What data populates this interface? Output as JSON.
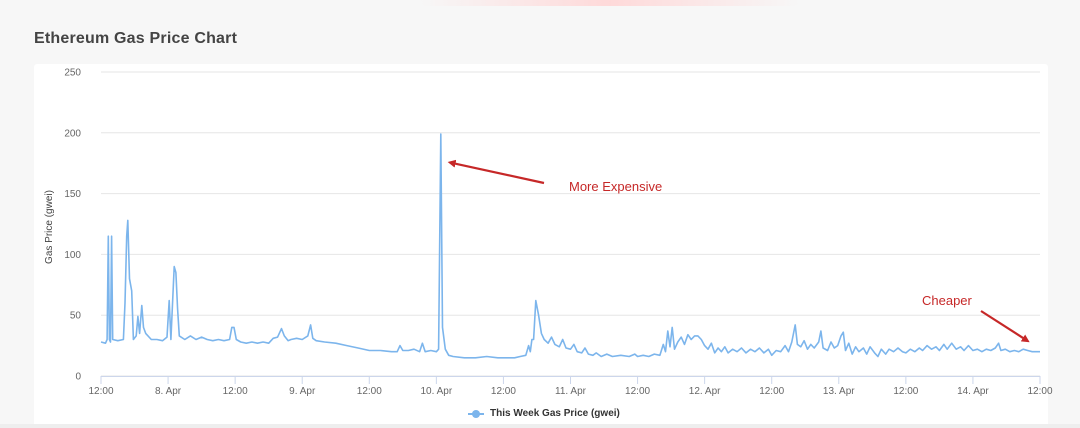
{
  "page": {
    "title": "Ethereum Gas Price Chart"
  },
  "chart_data": {
    "type": "line",
    "title": "Ethereum Gas Price Chart",
    "xlabel": "",
    "ylabel": "Gas Price (gwei)",
    "ylim": [
      0,
      250
    ],
    "yticks": [
      0,
      50,
      100,
      150,
      200,
      250
    ],
    "xlim": [
      0,
      168
    ],
    "xticks": [
      {
        "x": 0,
        "label": "12:00"
      },
      {
        "x": 12,
        "label": "8. Apr"
      },
      {
        "x": 24,
        "label": "12:00"
      },
      {
        "x": 36,
        "label": "9. Apr"
      },
      {
        "x": 48,
        "label": "12:00"
      },
      {
        "x": 60,
        "label": "10. Apr"
      },
      {
        "x": 72,
        "label": "12:00"
      },
      {
        "x": 84,
        "label": "11. Apr"
      },
      {
        "x": 96,
        "label": "12:00"
      },
      {
        "x": 108,
        "label": "12. Apr"
      },
      {
        "x": 120,
        "label": "12:00"
      },
      {
        "x": 132,
        "label": "13. Apr"
      },
      {
        "x": 144,
        "label": "12:00"
      },
      {
        "x": 156,
        "label": "14. Apr"
      },
      {
        "x": 168,
        "label": "12:00"
      }
    ],
    "grid": true,
    "legend_position": "bottom-center",
    "colors": {
      "series": "#7cb5ec",
      "grid": "#e6e6e6",
      "annotation": "#c62828"
    },
    "series": [
      {
        "name": "This Week Gas Price (gwei)",
        "points": [
          [
            0,
            28
          ],
          [
            0.8,
            27
          ],
          [
            1.1,
            30
          ],
          [
            1.3,
            115
          ],
          [
            1.5,
            30
          ],
          [
            1.7,
            28
          ],
          [
            1.9,
            115
          ],
          [
            2.1,
            30
          ],
          [
            3,
            29
          ],
          [
            4,
            30
          ],
          [
            4.3,
            60
          ],
          [
            4.6,
            115
          ],
          [
            4.8,
            128
          ],
          [
            5.1,
            80
          ],
          [
            5.5,
            70
          ],
          [
            5.8,
            30
          ],
          [
            6.3,
            33
          ],
          [
            6.6,
            49
          ],
          [
            6.9,
            35
          ],
          [
            7.3,
            58
          ],
          [
            7.6,
            40
          ],
          [
            8,
            35
          ],
          [
            9,
            30
          ],
          [
            10,
            30
          ],
          [
            11,
            29
          ],
          [
            11.8,
            32
          ],
          [
            12.2,
            62
          ],
          [
            12.5,
            30
          ],
          [
            13.1,
            90
          ],
          [
            13.4,
            85
          ],
          [
            13.7,
            55
          ],
          [
            14,
            33
          ],
          [
            15,
            30
          ],
          [
            16,
            33
          ],
          [
            17,
            30
          ],
          [
            18,
            32
          ],
          [
            19,
            30
          ],
          [
            20,
            29
          ],
          [
            21,
            30
          ],
          [
            22,
            29
          ],
          [
            23,
            30
          ],
          [
            23.4,
            40
          ],
          [
            23.8,
            40
          ],
          [
            24.2,
            30
          ],
          [
            25,
            28
          ],
          [
            26,
            27
          ],
          [
            27,
            28
          ],
          [
            28,
            27
          ],
          [
            29,
            28
          ],
          [
            30,
            27
          ],
          [
            30.8,
            31
          ],
          [
            31.6,
            32
          ],
          [
            32.3,
            39
          ],
          [
            32.8,
            33
          ],
          [
            33.5,
            29
          ],
          [
            34,
            30
          ],
          [
            35,
            31
          ],
          [
            36,
            30
          ],
          [
            37,
            33
          ],
          [
            37.5,
            42
          ],
          [
            37.9,
            31
          ],
          [
            38.5,
            29
          ],
          [
            40,
            28
          ],
          [
            42,
            27
          ],
          [
            44,
            25
          ],
          [
            46,
            23
          ],
          [
            48,
            21
          ],
          [
            50,
            21
          ],
          [
            52,
            20
          ],
          [
            53,
            20
          ],
          [
            53.5,
            25
          ],
          [
            54,
            21
          ],
          [
            55,
            21
          ],
          [
            56,
            22
          ],
          [
            57,
            20
          ],
          [
            57.5,
            27
          ],
          [
            58,
            20
          ],
          [
            59,
            21
          ],
          [
            60,
            20
          ],
          [
            60.4,
            22
          ],
          [
            60.8,
            199
          ],
          [
            61.1,
            40
          ],
          [
            61.6,
            22
          ],
          [
            62.2,
            17
          ],
          [
            63,
            16
          ],
          [
            65,
            15
          ],
          [
            67,
            15
          ],
          [
            69,
            16
          ],
          [
            71,
            15
          ],
          [
            72,
            15
          ],
          [
            74,
            15
          ],
          [
            75,
            16
          ],
          [
            76,
            17
          ],
          [
            76.5,
            25
          ],
          [
            76.8,
            20
          ],
          [
            77.1,
            30
          ],
          [
            77.4,
            30
          ],
          [
            77.8,
            62
          ],
          [
            78.3,
            50
          ],
          [
            78.8,
            35
          ],
          [
            79.3,
            30
          ],
          [
            80,
            27
          ],
          [
            80.6,
            32
          ],
          [
            81.2,
            26
          ],
          [
            82,
            24
          ],
          [
            82.6,
            30
          ],
          [
            83.2,
            23
          ],
          [
            84,
            22
          ],
          [
            84.6,
            26
          ],
          [
            85.2,
            20
          ],
          [
            86,
            19
          ],
          [
            86.6,
            23
          ],
          [
            87.2,
            18
          ],
          [
            88,
            17
          ],
          [
            88.6,
            19
          ],
          [
            89.5,
            16
          ],
          [
            90.5,
            18
          ],
          [
            91.5,
            16
          ],
          [
            93,
            17
          ],
          [
            94.5,
            16
          ],
          [
            95.5,
            18
          ],
          [
            96,
            16
          ],
          [
            97,
            17
          ],
          [
            98,
            16
          ],
          [
            99,
            18
          ],
          [
            100,
            17
          ],
          [
            100.6,
            26
          ],
          [
            101,
            20
          ],
          [
            101.4,
            37
          ],
          [
            101.8,
            24
          ],
          [
            102.2,
            40
          ],
          [
            102.6,
            22
          ],
          [
            103.2,
            28
          ],
          [
            103.8,
            32
          ],
          [
            104.4,
            26
          ],
          [
            105,
            34
          ],
          [
            105.6,
            30
          ],
          [
            106.2,
            33
          ],
          [
            106.8,
            33
          ],
          [
            107.4,
            30
          ],
          [
            108,
            25
          ],
          [
            108.6,
            22
          ],
          [
            109.2,
            27
          ],
          [
            109.8,
            19
          ],
          [
            110.4,
            23
          ],
          [
            111,
            20
          ],
          [
            111.6,
            24
          ],
          [
            112.2,
            19
          ],
          [
            113,
            22
          ],
          [
            113.8,
            20
          ],
          [
            114.6,
            23
          ],
          [
            115.4,
            19
          ],
          [
            116.2,
            22
          ],
          [
            117,
            20
          ],
          [
            117.8,
            23
          ],
          [
            118.6,
            19
          ],
          [
            119.4,
            22
          ],
          [
            120,
            17
          ],
          [
            120.8,
            21
          ],
          [
            121.6,
            20
          ],
          [
            122.4,
            25
          ],
          [
            123,
            20
          ],
          [
            123.6,
            28
          ],
          [
            124.2,
            42
          ],
          [
            124.6,
            26
          ],
          [
            125.2,
            24
          ],
          [
            125.8,
            29
          ],
          [
            126.4,
            22
          ],
          [
            127,
            26
          ],
          [
            127.6,
            23
          ],
          [
            128.4,
            28
          ],
          [
            128.8,
            37
          ],
          [
            129.2,
            23
          ],
          [
            130,
            21
          ],
          [
            130.6,
            28
          ],
          [
            131.2,
            23
          ],
          [
            131.8,
            25
          ],
          [
            132.4,
            33
          ],
          [
            132.8,
            36
          ],
          [
            133.2,
            21
          ],
          [
            133.8,
            27
          ],
          [
            134.4,
            18
          ],
          [
            135,
            24
          ],
          [
            135.6,
            20
          ],
          [
            136.4,
            23
          ],
          [
            137,
            18
          ],
          [
            137.6,
            24
          ],
          [
            138.4,
            19
          ],
          [
            139,
            16
          ],
          [
            139.6,
            22
          ],
          [
            140.4,
            18
          ],
          [
            141,
            22
          ],
          [
            141.8,
            20
          ],
          [
            142.6,
            23
          ],
          [
            143.4,
            20
          ],
          [
            144,
            19
          ],
          [
            144.8,
            22
          ],
          [
            145.6,
            20
          ],
          [
            146.4,
            23
          ],
          [
            147,
            21
          ],
          [
            147.8,
            25
          ],
          [
            148.6,
            22
          ],
          [
            149.4,
            24
          ],
          [
            150,
            21
          ],
          [
            150.8,
            26
          ],
          [
            151.4,
            22
          ],
          [
            152.2,
            27
          ],
          [
            153,
            22
          ],
          [
            153.8,
            24
          ],
          [
            154.4,
            21
          ],
          [
            155.2,
            25
          ],
          [
            156,
            21
          ],
          [
            156.8,
            22
          ],
          [
            157.6,
            20
          ],
          [
            158.4,
            22
          ],
          [
            159.2,
            21
          ],
          [
            160,
            23
          ],
          [
            160.6,
            27
          ],
          [
            161,
            21
          ],
          [
            161.8,
            22
          ],
          [
            162.6,
            20
          ],
          [
            163.4,
            21
          ],
          [
            164.2,
            20
          ],
          [
            165,
            22
          ],
          [
            165.8,
            21
          ],
          [
            166.6,
            20
          ],
          [
            167.4,
            20
          ],
          [
            168,
            20
          ]
        ]
      }
    ],
    "annotations": [
      {
        "text": "More Expensive",
        "arrow_to": [
          61.3,
          174
        ]
      },
      {
        "text": "Cheaper",
        "arrow_to": [
          168,
          27
        ]
      }
    ]
  }
}
